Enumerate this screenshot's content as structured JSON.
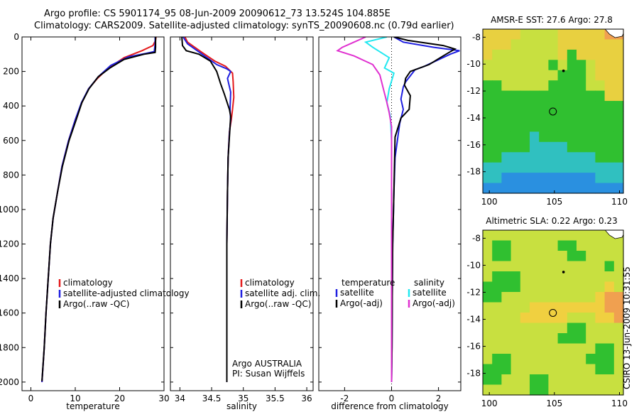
{
  "header": {
    "line1": "Argo profile: CS 5901174_95 08-Jun-2009 20090612_73 13.524S 104.885E",
    "line2": "Climatology: CARS2009. Satellite-adjusted climatology: synTS_20090608.nc (0.79d earlier)"
  },
  "credit": "CSIRO 13-Jun-2009 10:31:55",
  "colors": {
    "red": "#e41a1c",
    "blue": "#1f1fe0",
    "black": "#000000",
    "cyan": "#22e8f0",
    "magenta": "#e030d0"
  },
  "chart_data": [
    {
      "type": "line",
      "id": "temp",
      "xlabel": "temperature",
      "ylabel": "",
      "xlim": [
        -2,
        30
      ],
      "ylim": [
        2050,
        0
      ],
      "xticks": [
        0,
        10,
        20,
        30
      ],
      "yticks": [
        0,
        200,
        400,
        600,
        800,
        1000,
        1200,
        1400,
        1600,
        1800,
        2000
      ],
      "legend": [
        "climatology",
        "satellite-adjusted climatology",
        "Argo(..raw -QC)"
      ],
      "series": [
        {
          "name": "climatology",
          "color": "red",
          "points": [
            [
              28.2,
              0
            ],
            [
              28.1,
              20
            ],
            [
              27.5,
              50
            ],
            [
              25,
              80
            ],
            [
              21,
              120
            ],
            [
              17.5,
              180
            ],
            [
              15,
              240
            ],
            [
              13,
              300
            ],
            [
              11.5,
              380
            ],
            [
              10,
              480
            ],
            [
              8.5,
              600
            ],
            [
              7,
              750
            ],
            [
              6,
              900
            ],
            [
              5,
              1050
            ],
            [
              4.4,
              1200
            ],
            [
              3.9,
              1400
            ],
            [
              3.4,
              1600
            ],
            [
              3,
              1800
            ],
            [
              2.5,
              2000
            ]
          ]
        },
        {
          "name": "satellite-adjusted climatology",
          "color": "blue",
          "points": [
            [
              28,
              0
            ],
            [
              28,
              40
            ],
            [
              27.8,
              85
            ],
            [
              26,
              95
            ],
            [
              22,
              115
            ],
            [
              18,
              165
            ],
            [
              15.2,
              230
            ],
            [
              13,
              300
            ],
            [
              11.4,
              380
            ],
            [
              10,
              480
            ],
            [
              8.5,
              600
            ],
            [
              7,
              750
            ],
            [
              6,
              900
            ],
            [
              5,
              1050
            ],
            [
              4.4,
              1200
            ],
            [
              3.9,
              1400
            ],
            [
              3.4,
              1600
            ],
            [
              3,
              1800
            ],
            [
              2.5,
              2000
            ]
          ]
        },
        {
          "name": "Argo(..raw -QC)",
          "color": "black",
          "points": [
            [
              28.1,
              0
            ],
            [
              28.1,
              60
            ],
            [
              28,
              90
            ],
            [
              25.5,
              100
            ],
            [
              21,
              130
            ],
            [
              17.8,
              180
            ],
            [
              15.2,
              230
            ],
            [
              13.1,
              300
            ],
            [
              11.5,
              380
            ],
            [
              10.2,
              480
            ],
            [
              8.6,
              600
            ],
            [
              7.1,
              750
            ],
            [
              6,
              900
            ],
            [
              5,
              1050
            ],
            [
              4.4,
              1200
            ],
            [
              3.9,
              1400
            ],
            [
              3.4,
              1600
            ],
            [
              3,
              1800
            ],
            [
              2.5,
              1995
            ]
          ]
        }
      ]
    },
    {
      "type": "line",
      "id": "sal",
      "xlabel": "salinity",
      "ylabel": "",
      "xlim": [
        33.85,
        36.1
      ],
      "ylim": [
        2050,
        0
      ],
      "xticks": [
        34,
        34.5,
        35,
        35.5,
        36
      ],
      "yticks": [],
      "legend": [
        "climatology",
        "satellite adj. clim.",
        "Argo(..raw -QC)"
      ],
      "annotation": [
        "Argo AUSTRALIA",
        "PI: Susan Wijffels"
      ],
      "series": [
        {
          "name": "climatology",
          "color": "red",
          "points": [
            [
              34.08,
              0
            ],
            [
              34.12,
              30
            ],
            [
              34.35,
              90
            ],
            [
              34.55,
              140
            ],
            [
              34.72,
              170
            ],
            [
              34.83,
              210
            ],
            [
              34.84,
              260
            ],
            [
              34.85,
              350
            ],
            [
              34.83,
              420
            ],
            [
              34.81,
              480
            ],
            [
              34.78,
              550
            ],
            [
              34.76,
              700
            ],
            [
              34.75,
              900
            ],
            [
              34.74,
              1200
            ],
            [
              34.74,
              1500
            ],
            [
              34.74,
              1800
            ],
            [
              34.74,
              2000
            ]
          ]
        },
        {
          "name": "satellite adj. clim.",
          "color": "blue",
          "points": [
            [
              34.05,
              0
            ],
            [
              34.12,
              40
            ],
            [
              34.35,
              100
            ],
            [
              34.58,
              160
            ],
            [
              34.74,
              185
            ],
            [
              34.8,
              200
            ],
            [
              34.75,
              240
            ],
            [
              34.8,
              320
            ],
            [
              34.79,
              420
            ],
            [
              34.8,
              480
            ],
            [
              34.78,
              560
            ],
            [
              34.76,
              700
            ],
            [
              34.75,
              900
            ],
            [
              34.74,
              1200
            ],
            [
              34.74,
              1500
            ],
            [
              34.74,
              1800
            ],
            [
              34.74,
              2000
            ]
          ]
        },
        {
          "name": "Argo(..raw -QC)",
          "color": "black",
          "points": [
            [
              34.03,
              0
            ],
            [
              34.04,
              50
            ],
            [
              34.1,
              80
            ],
            [
              34.3,
              100
            ],
            [
              34.48,
              140
            ],
            [
              34.58,
              200
            ],
            [
              34.64,
              270
            ],
            [
              34.7,
              330
            ],
            [
              34.78,
              420
            ],
            [
              34.8,
              460
            ],
            [
              34.79,
              520
            ],
            [
              34.76,
              700
            ],
            [
              34.75,
              900
            ],
            [
              34.74,
              1200
            ],
            [
              34.74,
              1500
            ],
            [
              34.74,
              1800
            ],
            [
              34.74,
              2000
            ]
          ]
        }
      ]
    },
    {
      "type": "line",
      "id": "diff",
      "xlabel": "difference from climatology",
      "ylabel": "",
      "xlim": [
        -3.1,
        2.95
      ],
      "ylim": [
        2050,
        0
      ],
      "xticks": [
        -2,
        0,
        2
      ],
      "xtick_labels": [
        "-2",
        "0",
        "2"
      ],
      "yticks": [],
      "legend_left_title": "temperature",
      "legend_left": [
        "satellite",
        "Argo(-adj)"
      ],
      "legend_right_title": "salinity",
      "legend_right": [
        "satellite",
        "Argo(-adj)"
      ],
      "series": [
        {
          "name": "temperature satellite",
          "color": "blue",
          "points": [
            [
              0.1,
              0
            ],
            [
              0.5,
              30
            ],
            [
              1.8,
              60
            ],
            [
              2.9,
              80
            ],
            [
              2.5,
              100
            ],
            [
              1.4,
              170
            ],
            [
              1,
              190
            ],
            [
              0.6,
              260
            ],
            [
              0.5,
              290
            ],
            [
              0.4,
              360
            ],
            [
              0.5,
              420
            ],
            [
              0.35,
              500
            ],
            [
              0.15,
              700
            ],
            [
              0.1,
              900
            ],
            [
              0.05,
              1200
            ],
            [
              0.03,
              1500
            ],
            [
              0.02,
              1800
            ],
            [
              0,
              2000
            ]
          ]
        },
        {
          "name": "temperature Argo(-adj)",
          "color": "black",
          "points": [
            [
              0.1,
              0
            ],
            [
              0.7,
              20
            ],
            [
              2.2,
              50
            ],
            [
              2.7,
              70
            ],
            [
              2.2,
              110
            ],
            [
              1.6,
              160
            ],
            [
              0.8,
              200
            ],
            [
              0.6,
              240
            ],
            [
              0.55,
              280
            ],
            [
              0.8,
              340
            ],
            [
              0.75,
              420
            ],
            [
              0.4,
              470
            ],
            [
              0.15,
              580
            ],
            [
              0.1,
              900
            ],
            [
              0.05,
              1200
            ],
            [
              0.03,
              1500
            ],
            [
              0.02,
              1800
            ],
            [
              0,
              2000
            ]
          ]
        },
        {
          "name": "salinity satellite",
          "color": "cyan",
          "points": [
            [
              -0.2,
              0
            ],
            [
              -1.1,
              30
            ],
            [
              -0.8,
              60
            ],
            [
              -0.1,
              120
            ],
            [
              -0.3,
              180
            ],
            [
              0.1,
              210
            ],
            [
              -0.1,
              300
            ],
            [
              -0.2,
              380
            ],
            [
              -0.05,
              460
            ],
            [
              0,
              600
            ],
            [
              0,
              900
            ],
            [
              0,
              1200
            ],
            [
              0,
              1500
            ],
            [
              0,
              1800
            ],
            [
              0,
              2000
            ]
          ]
        },
        {
          "name": "salinity Argo(-adj)",
          "color": "magenta",
          "points": [
            [
              -1.1,
              0
            ],
            [
              -1.6,
              30
            ],
            [
              -2.1,
              60
            ],
            [
              -2.3,
              80
            ],
            [
              -1.6,
              110
            ],
            [
              -0.8,
              160
            ],
            [
              -0.5,
              220
            ],
            [
              -0.35,
              300
            ],
            [
              -0.2,
              380
            ],
            [
              -0.1,
              440
            ],
            [
              0,
              520
            ],
            [
              0,
              800
            ],
            [
              0,
              1200
            ],
            [
              0,
              1600
            ],
            [
              0,
              2000
            ]
          ]
        }
      ]
    },
    {
      "type": "heatmap",
      "id": "sst",
      "title": "AMSR-E SST: 27.6 Argo: 27.8",
      "xlim": [
        99.5,
        110.3
      ],
      "ylim": [
        -19.6,
        -7.4
      ],
      "xticks": [
        100,
        105,
        110
      ],
      "yticks": [
        -8,
        -10,
        -12,
        -14,
        -16,
        -18
      ],
      "profile_marker": [
        104.885,
        -13.524
      ],
      "coast_point": [
        105.7,
        -10.5
      ],
      "rows": [
        "OOOOYYYYOOOOOAA",
        "OOOYYYYYOOOOOOO",
        "OYYYYYYYOGOOOOO",
        "YYYYYYYGYGGYOOO",
        "YYYYYYYYGGGYOOO",
        "GGYYYYYGGGGYYOO",
        "GGGGGGGGGGGGGOO",
        "GGGGGGGGGGGGGGG",
        "GGGGGGGGGGGGGGG",
        "GGGGGGGGGGGGGGG",
        "GGGGGCGGGGGGGGG",
        "GGGGGCCCCGGGGGG",
        "GGCCCCCCCCCCGGG",
        "CCCCCCCCCCCCCCC",
        "CCBBBBBBBBBBCCC",
        "BBBBBBBBBBBBBBB"
      ],
      "palette": {
        "A": "#f0a050",
        "O": "#e8d040",
        "Y": "#c8e040",
        "G": "#30c030",
        "C": "#30c0c0",
        "B": "#2a90e0"
      }
    },
    {
      "type": "heatmap",
      "id": "sla",
      "title": "Altimetric SLA: 0.22 Argo: 0.23",
      "xlim": [
        99.5,
        110.3
      ],
      "ylim": [
        -19.6,
        -7.4
      ],
      "xticks": [
        100,
        105,
        110
      ],
      "yticks": [
        -8,
        -10,
        -12,
        -14,
        -16,
        -18
      ],
      "profile_marker": [
        104.885,
        -13.524
      ],
      "coast_point": [
        105.7,
        -10.5
      ],
      "rows": [
        "YYYYYYYYYYYYYYY",
        "YGGYYYYYGGYYYYY",
        "YGGYYYYYYGGYYYY",
        "YYYYYYYYYYYYYGY",
        "YGGGYYYYYYYYYYY",
        "GGGGYYYYYYYYYOY",
        "GGYYYYYYYYYYOAA",
        "YYYYYOOOOOOOOAA",
        "YYYYOOOOOYYYOOA",
        "YYYYYYYYYGGYYYY",
        "YYYYYYYYGGGYYYY",
        "YYYYYYYYYYYYGGY",
        "YGGYYYYYYYYGGGY",
        "GGGYYYYYYYYYGGY",
        "GGYYYGGYYYYYYYY",
        "YYYYYGGYYYYYYYY"
      ],
      "palette": {
        "A": "#f0a050",
        "O": "#f0d040",
        "Y": "#c8e040",
        "G": "#30c030",
        "C": "#30c0c0",
        "B": "#2a90e0"
      }
    }
  ]
}
